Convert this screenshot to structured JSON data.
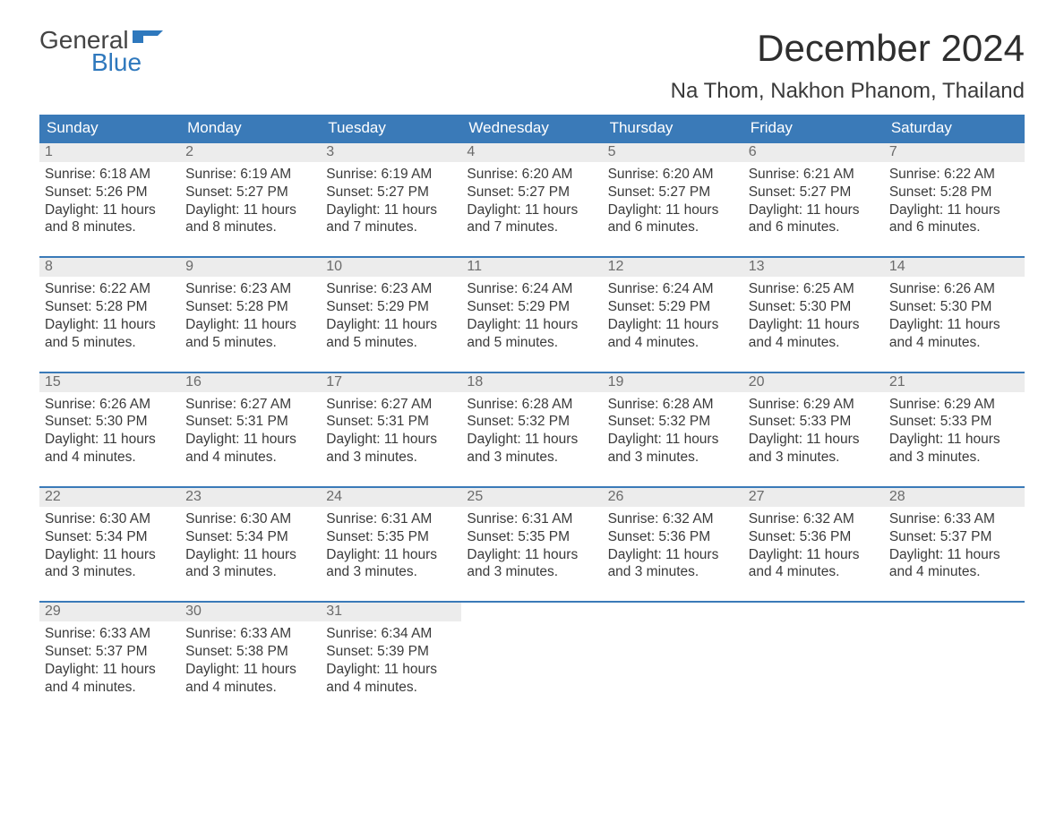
{
  "logo": {
    "word1": "General",
    "word2": "Blue",
    "icon_color": "#2e78bd"
  },
  "title": "December 2024",
  "location": "Na Thom, Nakhon Phanom, Thailand",
  "colors": {
    "header_bg": "#3a7ab8",
    "header_text": "#ffffff",
    "daynum_bg": "#ececec",
    "daynum_border": "#3a7ab8",
    "body_text": "#3a3a3a",
    "daynum_text": "#6b6b6b",
    "page_bg": "#ffffff"
  },
  "typography": {
    "title_size": 42,
    "location_size": 24,
    "header_size": 17,
    "cell_size": 15.5
  },
  "weekdays": [
    "Sunday",
    "Monday",
    "Tuesday",
    "Wednesday",
    "Thursday",
    "Friday",
    "Saturday"
  ],
  "weeks": [
    [
      {
        "n": "1",
        "sr": "6:18 AM",
        "ss": "5:26 PM",
        "dl": "11 hours and 8 minutes."
      },
      {
        "n": "2",
        "sr": "6:19 AM",
        "ss": "5:27 PM",
        "dl": "11 hours and 8 minutes."
      },
      {
        "n": "3",
        "sr": "6:19 AM",
        "ss": "5:27 PM",
        "dl": "11 hours and 7 minutes."
      },
      {
        "n": "4",
        "sr": "6:20 AM",
        "ss": "5:27 PM",
        "dl": "11 hours and 7 minutes."
      },
      {
        "n": "5",
        "sr": "6:20 AM",
        "ss": "5:27 PM",
        "dl": "11 hours and 6 minutes."
      },
      {
        "n": "6",
        "sr": "6:21 AM",
        "ss": "5:27 PM",
        "dl": "11 hours and 6 minutes."
      },
      {
        "n": "7",
        "sr": "6:22 AM",
        "ss": "5:28 PM",
        "dl": "11 hours and 6 minutes."
      }
    ],
    [
      {
        "n": "8",
        "sr": "6:22 AM",
        "ss": "5:28 PM",
        "dl": "11 hours and 5 minutes."
      },
      {
        "n": "9",
        "sr": "6:23 AM",
        "ss": "5:28 PM",
        "dl": "11 hours and 5 minutes."
      },
      {
        "n": "10",
        "sr": "6:23 AM",
        "ss": "5:29 PM",
        "dl": "11 hours and 5 minutes."
      },
      {
        "n": "11",
        "sr": "6:24 AM",
        "ss": "5:29 PM",
        "dl": "11 hours and 5 minutes."
      },
      {
        "n": "12",
        "sr": "6:24 AM",
        "ss": "5:29 PM",
        "dl": "11 hours and 4 minutes."
      },
      {
        "n": "13",
        "sr": "6:25 AM",
        "ss": "5:30 PM",
        "dl": "11 hours and 4 minutes."
      },
      {
        "n": "14",
        "sr": "6:26 AM",
        "ss": "5:30 PM",
        "dl": "11 hours and 4 minutes."
      }
    ],
    [
      {
        "n": "15",
        "sr": "6:26 AM",
        "ss": "5:30 PM",
        "dl": "11 hours and 4 minutes."
      },
      {
        "n": "16",
        "sr": "6:27 AM",
        "ss": "5:31 PM",
        "dl": "11 hours and 4 minutes."
      },
      {
        "n": "17",
        "sr": "6:27 AM",
        "ss": "5:31 PM",
        "dl": "11 hours and 3 minutes."
      },
      {
        "n": "18",
        "sr": "6:28 AM",
        "ss": "5:32 PM",
        "dl": "11 hours and 3 minutes."
      },
      {
        "n": "19",
        "sr": "6:28 AM",
        "ss": "5:32 PM",
        "dl": "11 hours and 3 minutes."
      },
      {
        "n": "20",
        "sr": "6:29 AM",
        "ss": "5:33 PM",
        "dl": "11 hours and 3 minutes."
      },
      {
        "n": "21",
        "sr": "6:29 AM",
        "ss": "5:33 PM",
        "dl": "11 hours and 3 minutes."
      }
    ],
    [
      {
        "n": "22",
        "sr": "6:30 AM",
        "ss": "5:34 PM",
        "dl": "11 hours and 3 minutes."
      },
      {
        "n": "23",
        "sr": "6:30 AM",
        "ss": "5:34 PM",
        "dl": "11 hours and 3 minutes."
      },
      {
        "n": "24",
        "sr": "6:31 AM",
        "ss": "5:35 PM",
        "dl": "11 hours and 3 minutes."
      },
      {
        "n": "25",
        "sr": "6:31 AM",
        "ss": "5:35 PM",
        "dl": "11 hours and 3 minutes."
      },
      {
        "n": "26",
        "sr": "6:32 AM",
        "ss": "5:36 PM",
        "dl": "11 hours and 3 minutes."
      },
      {
        "n": "27",
        "sr": "6:32 AM",
        "ss": "5:36 PM",
        "dl": "11 hours and 4 minutes."
      },
      {
        "n": "28",
        "sr": "6:33 AM",
        "ss": "5:37 PM",
        "dl": "11 hours and 4 minutes."
      }
    ],
    [
      {
        "n": "29",
        "sr": "6:33 AM",
        "ss": "5:37 PM",
        "dl": "11 hours and 4 minutes."
      },
      {
        "n": "30",
        "sr": "6:33 AM",
        "ss": "5:38 PM",
        "dl": "11 hours and 4 minutes."
      },
      {
        "n": "31",
        "sr": "6:34 AM",
        "ss": "5:39 PM",
        "dl": "11 hours and 4 minutes."
      },
      null,
      null,
      null,
      null
    ]
  ],
  "labels": {
    "sunrise": "Sunrise: ",
    "sunset": "Sunset: ",
    "daylight": "Daylight: "
  }
}
